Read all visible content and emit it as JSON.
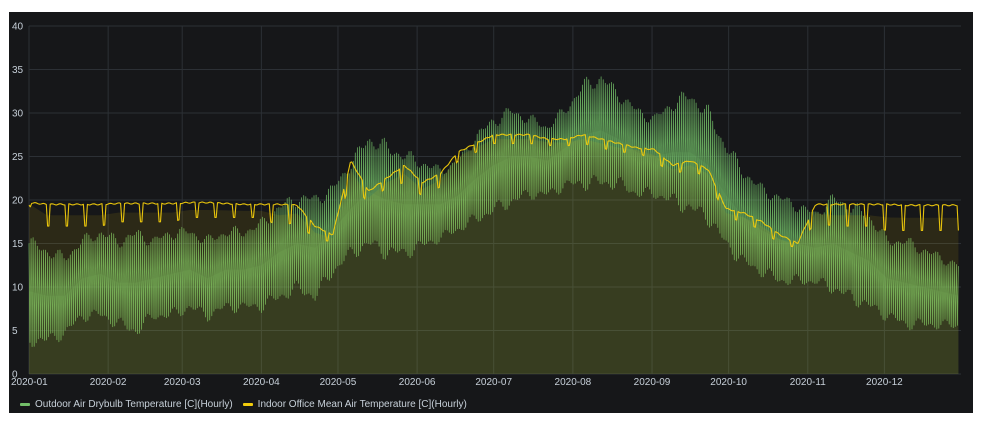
{
  "chart_data": {
    "type": "line",
    "title": "",
    "xlabel": "",
    "ylabel": "",
    "x_range": [
      "2020-01-01",
      "2020-12-31"
    ],
    "ylim": [
      0,
      40
    ],
    "y_ticks": [
      0,
      5,
      10,
      15,
      20,
      25,
      30,
      35,
      40
    ],
    "x_ticks": [
      {
        "date": "2020-01-01",
        "label": "2020-01"
      },
      {
        "date": "2020-02-01",
        "label": "2020-02"
      },
      {
        "date": "2020-03-01",
        "label": "2020-03"
      },
      {
        "date": "2020-04-01",
        "label": "2020-04"
      },
      {
        "date": "2020-05-01",
        "label": "2020-05"
      },
      {
        "date": "2020-06-01",
        "label": "2020-06"
      },
      {
        "date": "2020-07-01",
        "label": "2020-07"
      },
      {
        "date": "2020-08-01",
        "label": "2020-08"
      },
      {
        "date": "2020-09-01",
        "label": "2020-09"
      },
      {
        "date": "2020-10-01",
        "label": "2020-10"
      },
      {
        "date": "2020-11-01",
        "label": "2020-11"
      },
      {
        "date": "2020-12-01",
        "label": "2020-12"
      }
    ],
    "grid": true,
    "legend_position": "bottom-left",
    "series": [
      {
        "name": "Outdoor Air Drybulb Temperature [C](Hourly)",
        "color": "#73bf69",
        "x": [
          "2020-01-01",
          "2020-01-08",
          "2020-01-15",
          "2020-01-22",
          "2020-01-29",
          "2020-02-05",
          "2020-02-12",
          "2020-02-19",
          "2020-02-26",
          "2020-03-04",
          "2020-03-11",
          "2020-03-18",
          "2020-03-25",
          "2020-04-01",
          "2020-04-08",
          "2020-04-15",
          "2020-04-22",
          "2020-04-29",
          "2020-05-06",
          "2020-05-13",
          "2020-05-20",
          "2020-05-27",
          "2020-06-03",
          "2020-06-10",
          "2020-06-17",
          "2020-06-24",
          "2020-07-01",
          "2020-07-08",
          "2020-07-15",
          "2020-07-22",
          "2020-07-29",
          "2020-08-05",
          "2020-08-12",
          "2020-08-19",
          "2020-08-26",
          "2020-09-02",
          "2020-09-09",
          "2020-09-16",
          "2020-09-23",
          "2020-09-30",
          "2020-10-07",
          "2020-10-14",
          "2020-10-21",
          "2020-10-28",
          "2020-11-04",
          "2020-11-11",
          "2020-11-18",
          "2020-11-25",
          "2020-12-02",
          "2020-12-09",
          "2020-12-16",
          "2020-12-23",
          "2020-12-30"
        ],
        "max": [
          16,
          15,
          14,
          16,
          17,
          16,
          17,
          16,
          17,
          17,
          16,
          17,
          17,
          18,
          20,
          21,
          21,
          22,
          25,
          28,
          27,
          26,
          25,
          24,
          25,
          28,
          30,
          31,
          30,
          29,
          31,
          34,
          35,
          33,
          31,
          30,
          32,
          33,
          31,
          27,
          24,
          22,
          21,
          20,
          19,
          21,
          20,
          19,
          16,
          16,
          15,
          14,
          13
        ],
        "min": [
          3,
          3,
          4,
          6,
          6,
          5,
          4,
          6,
          6,
          7,
          6,
          7,
          7,
          7,
          8,
          9,
          8,
          11,
          13,
          14,
          13,
          13,
          14,
          15,
          16,
          17,
          18,
          19,
          20,
          20,
          21,
          21,
          21,
          21,
          20,
          20,
          19,
          18,
          17,
          14,
          12,
          11,
          10,
          10,
          10,
          9,
          8,
          7,
          6,
          5,
          5,
          5,
          5
        ]
      },
      {
        "name": "Indoor Office Mean Air Temperature [C](Hourly)",
        "color": "#f2cc0c",
        "x": [
          "2020-01-01",
          "2020-01-08",
          "2020-01-15",
          "2020-01-22",
          "2020-01-29",
          "2020-02-05",
          "2020-02-12",
          "2020-02-19",
          "2020-02-26",
          "2020-03-04",
          "2020-03-11",
          "2020-03-18",
          "2020-03-25",
          "2020-04-01",
          "2020-04-08",
          "2020-04-15",
          "2020-04-22",
          "2020-04-29",
          "2020-05-06",
          "2020-05-13",
          "2020-05-20",
          "2020-05-27",
          "2020-06-03",
          "2020-06-10",
          "2020-06-17",
          "2020-06-24",
          "2020-07-01",
          "2020-07-08",
          "2020-07-15",
          "2020-07-22",
          "2020-07-29",
          "2020-08-05",
          "2020-08-12",
          "2020-08-19",
          "2020-08-26",
          "2020-09-02",
          "2020-09-09",
          "2020-09-16",
          "2020-09-23",
          "2020-09-30",
          "2020-10-07",
          "2020-10-14",
          "2020-10-21",
          "2020-10-28",
          "2020-11-04",
          "2020-11-11",
          "2020-11-18",
          "2020-11-25",
          "2020-12-02",
          "2020-12-09",
          "2020-12-16",
          "2020-12-23",
          "2020-12-30"
        ],
        "max": [
          19.7,
          19.5,
          19.5,
          19.5,
          19.5,
          19.6,
          19.6,
          19.6,
          19.6,
          19.7,
          19.7,
          19.6,
          19.5,
          19.5,
          19.5,
          19.4,
          17.0,
          16.0,
          24.5,
          21.0,
          22.5,
          24.0,
          22.0,
          23.0,
          25.5,
          26.5,
          27.5,
          27.5,
          27.5,
          27.0,
          27.0,
          27.5,
          27.0,
          26.5,
          26.0,
          25.8,
          24.0,
          24.5,
          23.5,
          19.0,
          18.5,
          17.5,
          16.0,
          15.0,
          19.5,
          19.5,
          19.5,
          19.5,
          19.5,
          19.4,
          19.4,
          19.4,
          19.4
        ],
        "min": [
          19.4,
          17.0,
          17.0,
          17.0,
          17.0,
          17.5,
          17.5,
          17.5,
          17.5,
          18.0,
          18.0,
          18.0,
          18.0,
          18.0,
          17.0,
          17.5,
          15.5,
          15.2,
          22.5,
          19.5,
          21.5,
          22.0,
          20.5,
          21.5,
          24.5,
          25.5,
          26.5,
          26.5,
          26.5,
          26.3,
          26.2,
          26.5,
          26.0,
          25.5,
          25.5,
          24.5,
          23.0,
          23.5,
          22.5,
          18.0,
          17.5,
          16.5,
          15.0,
          14.5,
          17.5,
          17.0,
          17.0,
          17.0,
          16.5,
          16.5,
          16.5,
          16.5,
          16.5
        ]
      }
    ]
  }
}
